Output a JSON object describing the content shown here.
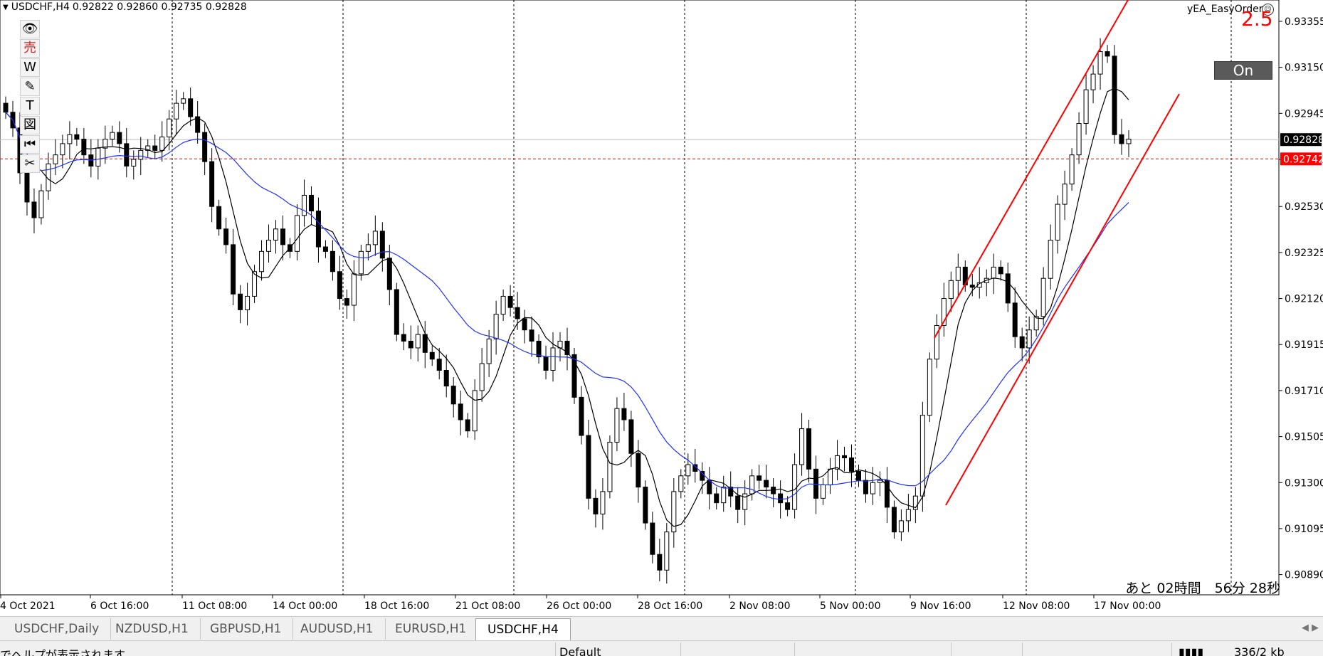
{
  "header": {
    "symbol": "USDCHF,H4",
    "ohlc": "0.92822 0.92860 0.92735 0.92828"
  },
  "ea": {
    "name": "yEA_EasyOrder",
    "icon": "smiley-icon",
    "value": "2.5",
    "toggle_label": "On"
  },
  "toolbar": [
    {
      "icon": "eye-icon",
      "glyph": "👁"
    },
    {
      "icon": "sell-icon",
      "glyph": "売"
    },
    {
      "icon": "w-icon",
      "glyph": "W"
    },
    {
      "icon": "pencil-icon",
      "glyph": "✎"
    },
    {
      "icon": "text-icon",
      "glyph": "T"
    },
    {
      "icon": "figure-icon",
      "glyph": "図"
    },
    {
      "icon": "rewind-icon",
      "glyph": "⏮"
    },
    {
      "icon": "scissors-icon",
      "glyph": "✂"
    }
  ],
  "chart_data": {
    "type": "candlestick",
    "symbol": "USDCHF",
    "timeframe": "H4",
    "ylim": [
      0.908,
      0.9345
    ],
    "y_ticks": [
      "0.93355",
      "0.93150",
      "0.92945",
      "0.92740",
      "0.92530",
      "0.92325",
      "0.92120",
      "0.91915",
      "0.91710",
      "0.91505",
      "0.91300",
      "0.91095",
      "0.90890"
    ],
    "x_ticks": [
      "4 Oct 2021",
      "6 Oct 16:00",
      "11 Oct 08:00",
      "14 Oct 00:00",
      "18 Oct 16:00",
      "21 Oct 08:00",
      "26 Oct 00:00",
      "28 Oct 16:00",
      "2 Nov 08:00",
      "5 Nov 00:00",
      "9 Nov 16:00",
      "12 Nov 08:00",
      "17 Nov 00:00"
    ],
    "current_price": "0.92828",
    "order_price": "0.92742",
    "colors": {
      "ma_fast": "#000000",
      "ma_slow": "#2030ff",
      "channel": "#ff0000",
      "order_line": "#ff0000",
      "bid_line": "#c0c0c0"
    },
    "close_series": [
      0.9295,
      0.9288,
      0.9268,
      0.9255,
      0.9248,
      0.926,
      0.9272,
      0.9276,
      0.9281,
      0.9285,
      0.9283,
      0.9276,
      0.9271,
      0.9279,
      0.9283,
      0.9286,
      0.9281,
      0.9271,
      0.9274,
      0.9278,
      0.928,
      0.9278,
      0.9284,
      0.9292,
      0.9299,
      0.9301,
      0.9293,
      0.9286,
      0.9273,
      0.9253,
      0.9243,
      0.9236,
      0.9214,
      0.9207,
      0.9213,
      0.9224,
      0.9233,
      0.9238,
      0.9243,
      0.9236,
      0.9233,
      0.9249,
      0.9258,
      0.9251,
      0.9235,
      0.9233,
      0.9224,
      0.9212,
      0.9209,
      0.9223,
      0.9233,
      0.9236,
      0.9242,
      0.923,
      0.9216,
      0.9196,
      0.9193,
      0.919,
      0.9196,
      0.9188,
      0.9185,
      0.918,
      0.9173,
      0.9165,
      0.9158,
      0.9153,
      0.9171,
      0.9183,
      0.9194,
      0.9205,
      0.9213,
      0.9208,
      0.9203,
      0.9198,
      0.9193,
      0.9186,
      0.918,
      0.919,
      0.9193,
      0.9187,
      0.9168,
      0.9151,
      0.9123,
      0.9116,
      0.9126,
      0.9148,
      0.9163,
      0.9158,
      0.9143,
      0.9128,
      0.9112,
      0.9098,
      0.9091,
      0.9108,
      0.9126,
      0.9133,
      0.9138,
      0.9135,
      0.9131,
      0.9125,
      0.9121,
      0.9128,
      0.9124,
      0.9118,
      0.9125,
      0.9133,
      0.9131,
      0.9128,
      0.9125,
      0.9121,
      0.9118,
      0.9138,
      0.9154,
      0.9136,
      0.9123,
      0.9129,
      0.9136,
      0.9142,
      0.9141,
      0.9135,
      0.9131,
      0.9125,
      0.913,
      0.9131,
      0.9119,
      0.9108,
      0.9113,
      0.9118,
      0.9124,
      0.916,
      0.9185,
      0.92,
      0.9212,
      0.922,
      0.9226,
      0.9218,
      0.9217,
      0.9219,
      0.9221,
      0.9226,
      0.9223,
      0.921,
      0.9195,
      0.919,
      0.9198,
      0.9204,
      0.9221,
      0.9238,
      0.9254,
      0.9263,
      0.9276,
      0.929,
      0.9305,
      0.9312,
      0.9322,
      0.932,
      0.9285,
      0.9281,
      0.9283
    ]
  },
  "countdown": "あと 02時間　56分 28秒",
  "tabs": [
    {
      "label": "USDCHF,Daily",
      "active": false
    },
    {
      "label": "NZDUSD,H1",
      "active": false
    },
    {
      "label": "GBPUSD,H1",
      "active": false
    },
    {
      "label": "AUDUSD,H1",
      "active": false
    },
    {
      "label": "EURUSD,H1",
      "active": false
    },
    {
      "label": "USDCHF,H4",
      "active": true
    }
  ],
  "statusbar": {
    "help": "でヘルプが表示されます",
    "profile": "Default",
    "traffic": "336/2 kb"
  }
}
